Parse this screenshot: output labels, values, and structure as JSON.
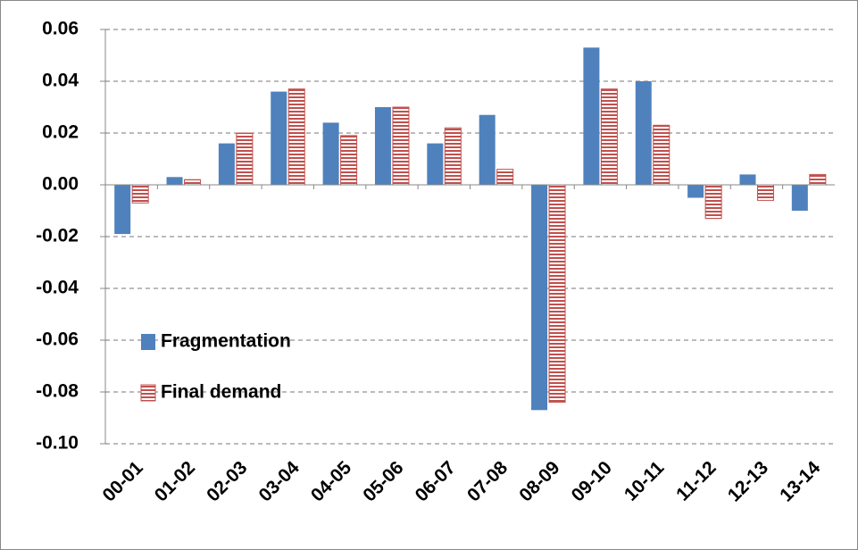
{
  "chart_data": {
    "type": "bar",
    "categories": [
      "00-01",
      "01-02",
      "02-03",
      "03-04",
      "04-05",
      "05-06",
      "06-07",
      "07-08",
      "08-09",
      "09-10",
      "10-11",
      "11-12",
      "12-13",
      "13-14"
    ],
    "series": [
      {
        "name": "Fragmentation",
        "color": "#4f81bd",
        "values": [
          -0.019,
          0.003,
          0.016,
          0.036,
          0.024,
          0.03,
          0.016,
          0.027,
          -0.087,
          0.053,
          0.04,
          -0.005,
          0.004,
          -0.01
        ]
      },
      {
        "name": "Final demand",
        "color": "#c0504d",
        "hatch": "horizontal",
        "values": [
          -0.007,
          0.002,
          0.02,
          0.037,
          0.019,
          0.03,
          0.022,
          0.006,
          -0.084,
          0.037,
          0.023,
          -0.013,
          -0.006,
          0.004
        ]
      }
    ],
    "ylim": [
      -0.1,
      0.06
    ],
    "yticks": [
      {
        "value": -0.1,
        "label": "-0.10"
      },
      -0.08,
      -0.06,
      -0.04,
      -0.02,
      {
        "value": 0,
        "label": "0.00"
      },
      0.02,
      0.04,
      0.06
    ],
    "grid": true,
    "legend": "left"
  }
}
